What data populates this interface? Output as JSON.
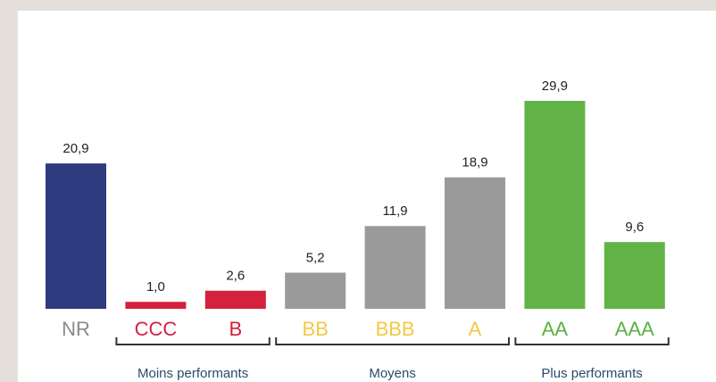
{
  "chart_data": {
    "type": "bar",
    "categories": [
      "NR",
      "CCC",
      "B",
      "BB",
      "BBB",
      "A",
      "AA",
      "AAA"
    ],
    "values": [
      20.9,
      1.0,
      2.6,
      5.2,
      11.9,
      18.9,
      29.9,
      9.6
    ],
    "value_labels": [
      "20,9",
      "1,0",
      "2,6",
      "5,2",
      "11,9",
      "18,9",
      "29,9",
      "9,6"
    ],
    "colors": [
      "#2e3b7e",
      "#d4213d",
      "#d4213d",
      "#9a9a9a",
      "#9a9a9a",
      "#9a9a9a",
      "#62b346",
      "#62b346"
    ],
    "label_colors": [
      "#8a8a8a",
      "#d4213d",
      "#d4213d",
      "#f5c842",
      "#f5c842",
      "#f5c842",
      "#5bb043",
      "#5bb043"
    ],
    "groups": [
      "Moins performants",
      "Moyens",
      "Plus performants"
    ]
  }
}
